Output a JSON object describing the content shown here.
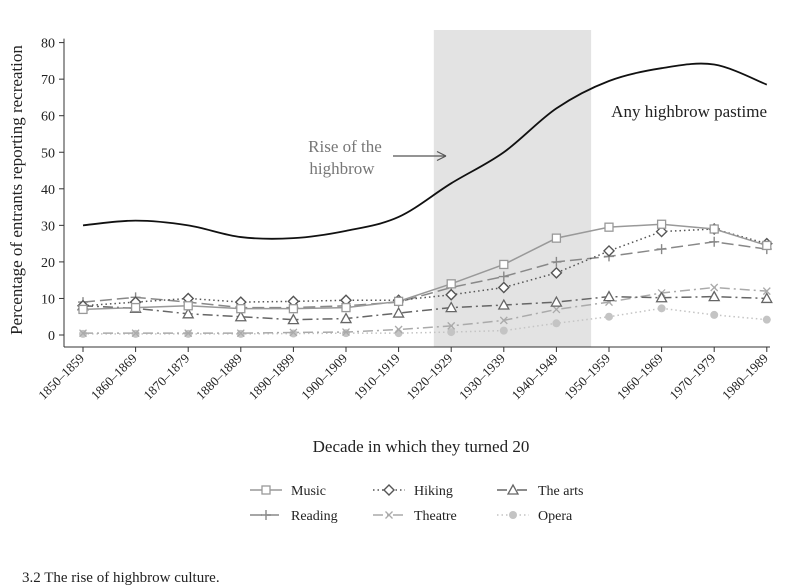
{
  "chart_data": {
    "type": "line",
    "ylabel": "Percentage of entrants reporting recreation",
    "xlabel": "Decade in which they turned 20",
    "ylim": [
      0,
      80
    ],
    "yticks": [
      0,
      10,
      20,
      30,
      40,
      50,
      60,
      70,
      80
    ],
    "categories": [
      "1850–1859",
      "1860–1869",
      "1870–1879",
      "1880–1889",
      "1890–1899",
      "1900–1909",
      "1910–1919",
      "1920–1929",
      "1930–1939",
      "1940–1949",
      "1950–1959",
      "1960–1969",
      "1970–1979",
      "1980–1989"
    ],
    "shaded_region": {
      "from": "1920–1929",
      "to": "1950–1959",
      "label": "Rise of the highbrow"
    },
    "series": [
      {
        "name": "Any highbrow pastime",
        "style": "solid",
        "marker": "none",
        "color": "#111111",
        "values": [
          30,
          31.3,
          30,
          26.8,
          26.5,
          28.5,
          32.3,
          41.5,
          50,
          62,
          69.5,
          73,
          74,
          68.5
        ]
      },
      {
        "name": "Music",
        "style": "solid",
        "marker": "square",
        "color": "#999999",
        "values": [
          7,
          7.5,
          8,
          7.2,
          7.2,
          7.5,
          9.2,
          14,
          19.3,
          26.5,
          29.5,
          30.3,
          29,
          24.5
        ]
      },
      {
        "name": "Hiking",
        "style": "dotted",
        "marker": "diamond",
        "color": "#555555",
        "values": [
          8,
          9,
          10,
          9,
          9.2,
          9.5,
          9.5,
          11,
          13,
          17,
          23,
          28.3,
          29,
          25
        ]
      },
      {
        "name": "The arts",
        "style": "dashdot",
        "marker": "triangle",
        "color": "#666666",
        "values": [
          8,
          7.3,
          5.8,
          5,
          4.2,
          4.5,
          6,
          7.5,
          8.2,
          9,
          10.5,
          10.2,
          10.5,
          10
        ]
      },
      {
        "name": "Reading",
        "style": "longdash",
        "marker": "plus",
        "color": "#888888",
        "values": [
          9,
          10.3,
          9,
          7.5,
          7.5,
          8,
          9,
          13,
          16,
          20,
          21.5,
          23.5,
          25.5,
          23.5
        ]
      },
      {
        "name": "Theatre",
        "style": "dashdot",
        "marker": "x",
        "color": "#aaaaaa",
        "values": [
          0.5,
          0.5,
          0.5,
          0.5,
          0.7,
          0.8,
          1.5,
          2.5,
          4,
          7,
          9,
          11.5,
          13,
          12
        ]
      },
      {
        "name": "Opera",
        "style": "dotted",
        "marker": "circle",
        "color": "#c4c4c4",
        "values": [
          0.3,
          0.3,
          0.3,
          0.3,
          0.4,
          0.5,
          0.5,
          0.8,
          1.2,
          3.2,
          5,
          7.3,
          5.5,
          4.2
        ]
      }
    ]
  },
  "caption": "3.2  The rise of highbrow culture."
}
